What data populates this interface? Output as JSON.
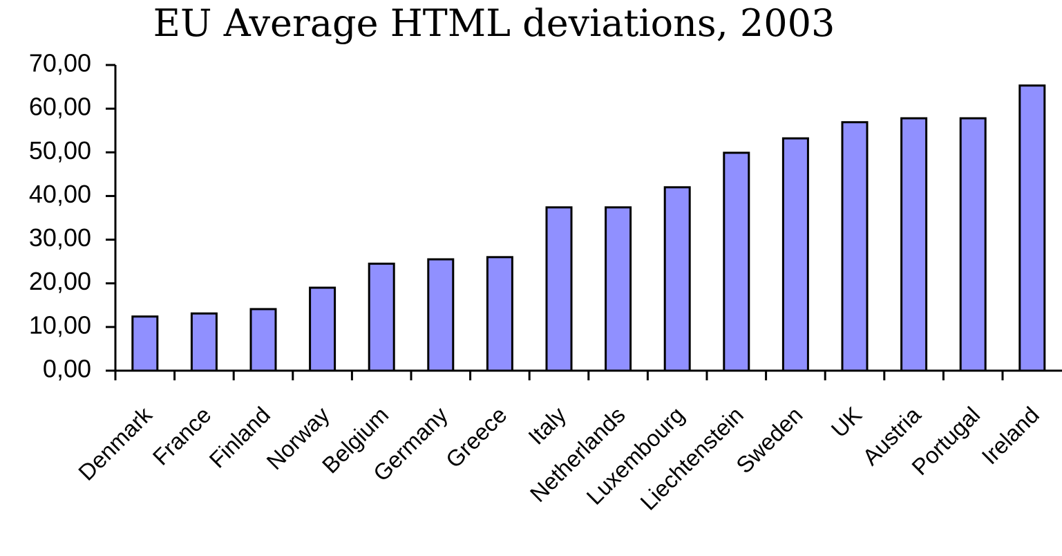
{
  "chart_data": {
    "type": "bar",
    "title": "EU Average HTML deviations, 2003",
    "categories": [
      "Denmark",
      "France",
      "Finland",
      "Norway",
      "Belgium",
      "Germany",
      "Greece",
      "Italy",
      "Netherlands",
      "Luxembourg",
      "Liechtenstein",
      "Sweden",
      "UK",
      "Austria",
      "Portugal",
      "Ireland"
    ],
    "values": [
      12.4,
      13.1,
      14.1,
      19.0,
      24.5,
      25.5,
      26.0,
      37.4,
      37.4,
      42.0,
      49.9,
      53.2,
      56.9,
      57.8,
      57.8,
      65.3
    ],
    "color": "#9090ff",
    "ylim": [
      0,
      70
    ],
    "yticks": [
      {
        "value": 0,
        "label": "0,00"
      },
      {
        "value": 10,
        "label": "10,00"
      },
      {
        "value": 20,
        "label": "20,00"
      },
      {
        "value": 30,
        "label": "30,00"
      },
      {
        "value": 40,
        "label": "40,00"
      },
      {
        "value": 50,
        "label": "50,00"
      },
      {
        "value": 60,
        "label": "60,00"
      },
      {
        "value": 70,
        "label": "70,00"
      }
    ],
    "grid": false
  }
}
